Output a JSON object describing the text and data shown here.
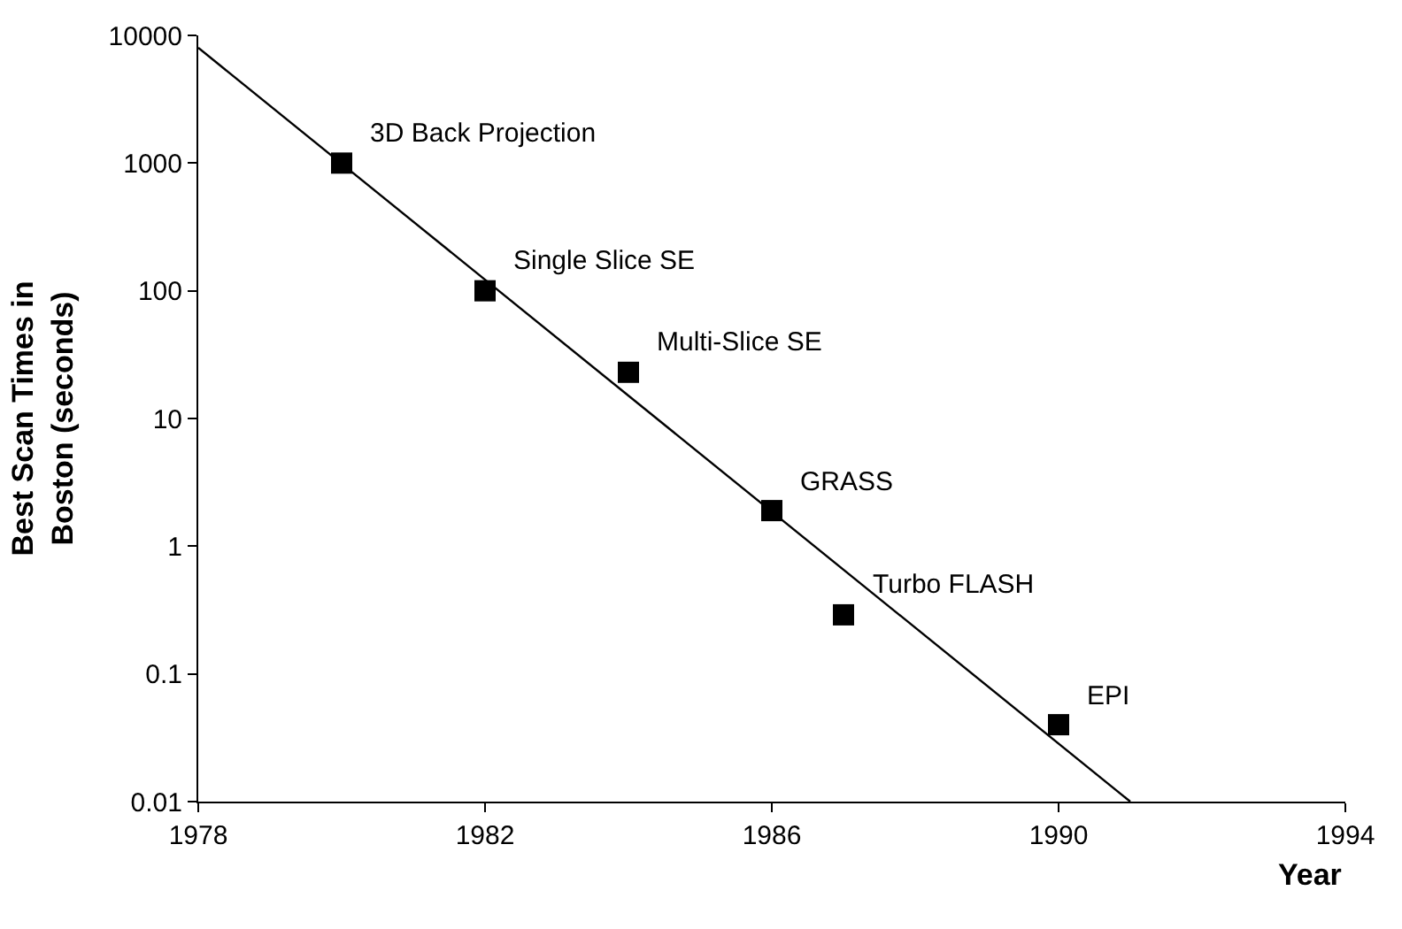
{
  "chart_data": {
    "type": "scatter",
    "xlabel": "Year",
    "ylabel": "Best Scan Times in\nBoston (seconds)",
    "log": "y",
    "marker": "square",
    "xlim": [
      1978,
      1994
    ],
    "xticks": [
      1978,
      1982,
      1986,
      1990,
      1994
    ],
    "ylim": [
      0.01,
      10000
    ],
    "yticks": [
      0.01,
      0.1,
      1,
      10,
      100,
      1000,
      10000
    ],
    "series": [
      {
        "color": "#000000",
        "x": [
          1980,
          1982,
          1984,
          1986,
          1987,
          1990
        ],
        "values": [
          1000,
          100,
          23,
          1.9,
          0.29,
          0.04
        ]
      },
      {
        "type": "line",
        "color": "#000000",
        "marker": "none",
        "x": [
          1978,
          1991
        ],
        "values": [
          8000,
          0.01
        ]
      }
    ],
    "annotations": [
      {
        "text": "3D Back Projection",
        "x": 1980,
        "y": 1000
      },
      {
        "text": "Single Slice SE",
        "x": 1982,
        "y": 100
      },
      {
        "text": "Multi-Slice SE",
        "x": 1984,
        "y": 23
      },
      {
        "text": "GRASS",
        "x": 1986,
        "y": 1.9
      },
      {
        "text": "Turbo FLASH",
        "x": 1987,
        "y": 0.29
      },
      {
        "text": "EPI",
        "x": 1990,
        "y": 0.04
      }
    ]
  }
}
